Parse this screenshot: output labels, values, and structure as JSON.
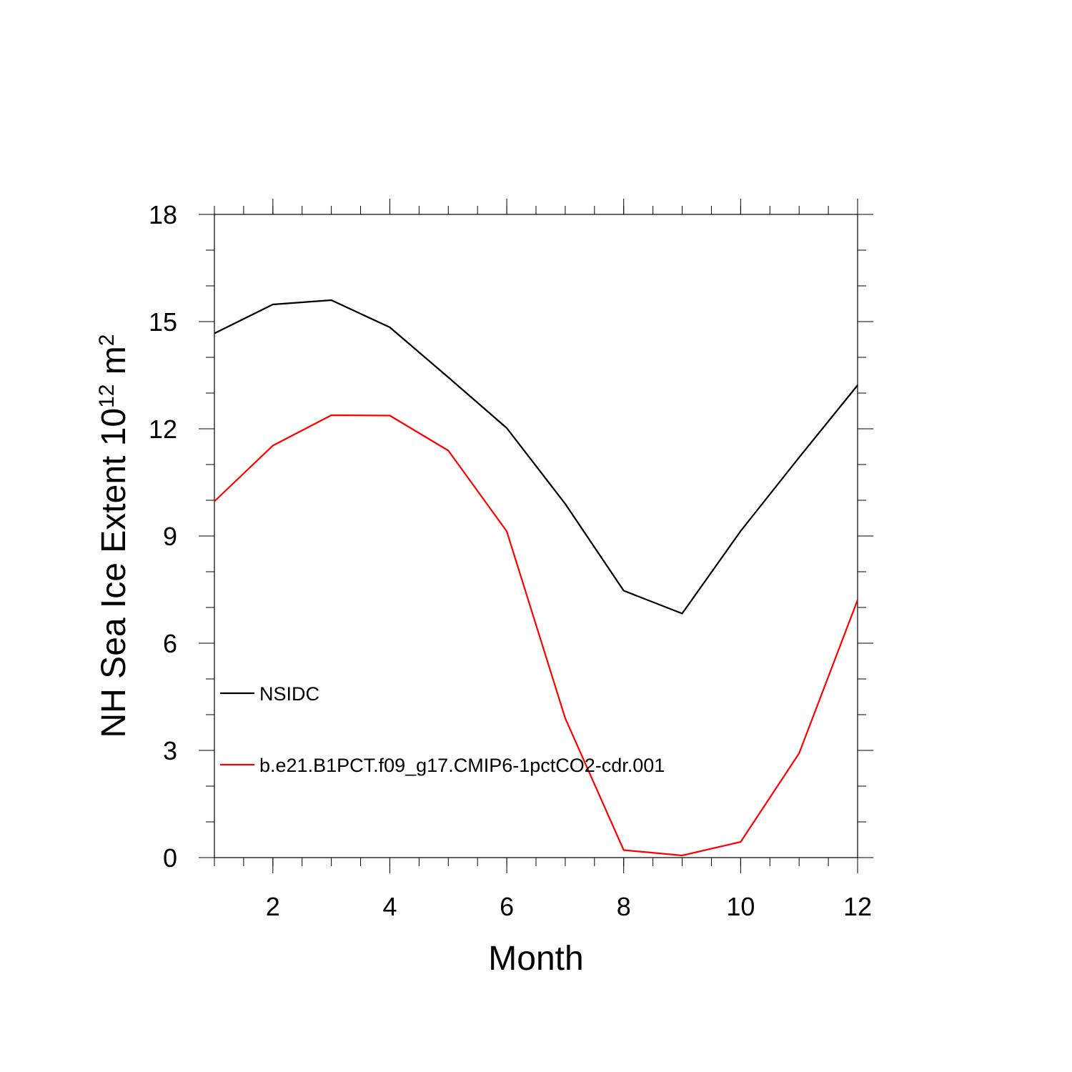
{
  "chart_data": {
    "type": "line",
    "title": "",
    "xlabel": "Month",
    "ylabel": {
      "text": "NH Sea Ice Extent 10",
      "exponent": "12",
      "unit": " m",
      "unit_exponent": "2"
    },
    "xlim": [
      1,
      12
    ],
    "ylim": [
      0,
      18
    ],
    "x_ticks": [
      2,
      4,
      6,
      8,
      10,
      12
    ],
    "y_ticks": [
      0,
      3,
      6,
      9,
      12,
      15,
      18
    ],
    "grid": false,
    "legend_placement": "lower-left",
    "x": [
      1,
      2,
      3,
      4,
      5,
      6,
      7,
      8,
      9,
      10,
      11,
      12
    ],
    "series": [
      {
        "name": "NSIDC",
        "color": "#000000",
        "values": [
          14.67,
          15.48,
          15.6,
          14.84,
          13.44,
          12.02,
          9.9,
          7.47,
          6.83,
          9.14,
          11.2,
          13.22
        ]
      },
      {
        "name": "b.e21.B1PCT.f09_g17.CMIP6-1pctCO2-cdr.001",
        "color": "#ff0000",
        "values": [
          9.97,
          11.53,
          12.38,
          12.37,
          11.39,
          9.13,
          3.9,
          0.21,
          0.06,
          0.44,
          2.92,
          7.21
        ]
      }
    ]
  }
}
